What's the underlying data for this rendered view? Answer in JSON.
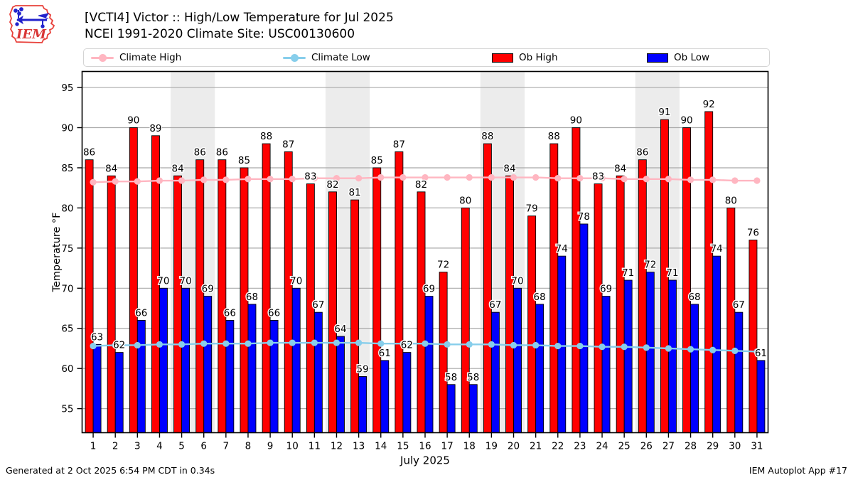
{
  "header": {
    "logo_text": "IEM",
    "title_line1": "[VCTI4] Victor :: High/Low Temperature for Jul 2025",
    "title_line2": "NCEI 1991-2020 Climate Site: USC00130600"
  },
  "legend": {
    "items": [
      {
        "label": "Climate High",
        "swatch": "line-dot",
        "color": "#ffb6c1"
      },
      {
        "label": "Climate Low",
        "swatch": "line-dot",
        "color": "#87ceeb"
      },
      {
        "label": "Ob High",
        "swatch": "rect",
        "color": "#ff0000"
      },
      {
        "label": "Ob Low",
        "swatch": "rect",
        "color": "#0000ff"
      }
    ]
  },
  "footer": {
    "generated": "Generated at 2 Oct 2025 6:54 PM CDT in 0.34s",
    "app": "IEM Autoplot App #17"
  },
  "chart_data": {
    "type": "bar",
    "title": "[VCTI4] Victor :: High/Low Temperature for Jul 2025",
    "subtitle": "NCEI 1991-2020 Climate Site: USC00130600",
    "xlabel": "July 2025",
    "ylabel": "Temperature °F",
    "x": [
      1,
      2,
      3,
      4,
      5,
      6,
      7,
      8,
      9,
      10,
      11,
      12,
      13,
      14,
      15,
      16,
      17,
      18,
      19,
      20,
      21,
      22,
      23,
      24,
      25,
      26,
      27,
      28,
      29,
      30,
      31
    ],
    "ylim": [
      52,
      97
    ],
    "yticks": [
      55,
      60,
      65,
      70,
      75,
      80,
      85,
      90,
      95
    ],
    "grid": "horizontal",
    "legend_position": "top",
    "weekend_bands": [
      [
        4.5,
        6.5
      ],
      [
        11.5,
        13.5
      ],
      [
        18.5,
        20.5
      ],
      [
        25.5,
        27.5
      ]
    ],
    "colors": {
      "weekend_band": "#ececec",
      "grid": "#a9a9a9",
      "frame": "#000000"
    },
    "series": [
      {
        "name": "Ob High",
        "type": "bar",
        "color": "#ff0000",
        "values": [
          86,
          84,
          90,
          89,
          84,
          86,
          86,
          85,
          88,
          87,
          83,
          82,
          81,
          85,
          87,
          82,
          72,
          80,
          88,
          84,
          79,
          88,
          90,
          83,
          84,
          86,
          91,
          90,
          92,
          80,
          76
        ]
      },
      {
        "name": "Ob Low",
        "type": "bar",
        "color": "#0000ff",
        "values": [
          63,
          62,
          66,
          70,
          70,
          69,
          66,
          68,
          66,
          70,
          67,
          64,
          59,
          61,
          62,
          69,
          58,
          58,
          67,
          70,
          68,
          74,
          78,
          69,
          71,
          72,
          71,
          68,
          74,
          67,
          61
        ]
      },
      {
        "name": "Climate High",
        "type": "line",
        "color": "#ffb6c1",
        "values": [
          83.2,
          83.3,
          83.3,
          83.4,
          83.4,
          83.5,
          83.5,
          83.6,
          83.6,
          83.6,
          83.7,
          83.7,
          83.7,
          83.8,
          83.8,
          83.8,
          83.8,
          83.8,
          83.8,
          83.8,
          83.8,
          83.7,
          83.7,
          83.7,
          83.6,
          83.6,
          83.6,
          83.5,
          83.5,
          83.4,
          83.4
        ]
      },
      {
        "name": "Climate Low",
        "type": "line",
        "color": "#87ceeb",
        "values": [
          62.8,
          62.9,
          62.9,
          63.0,
          63.0,
          63.1,
          63.1,
          63.1,
          63.2,
          63.2,
          63.2,
          63.2,
          63.2,
          63.1,
          63.1,
          63.1,
          63.0,
          63.0,
          63.0,
          62.9,
          62.9,
          62.8,
          62.8,
          62.7,
          62.7,
          62.6,
          62.5,
          62.4,
          62.3,
          62.2,
          62.1
        ]
      }
    ]
  }
}
